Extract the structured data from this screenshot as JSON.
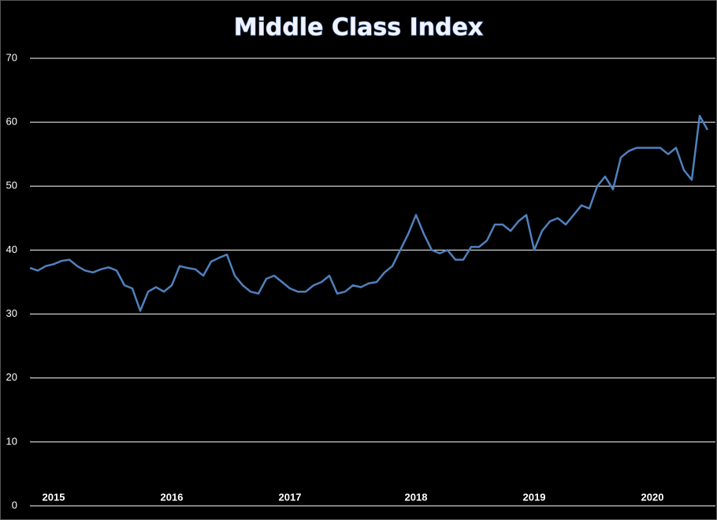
{
  "chart_data": {
    "type": "line",
    "title": "Middle Class Index",
    "categories": [
      null,
      null,
      null,
      "2015",
      null,
      null,
      null,
      null,
      null,
      null,
      null,
      null,
      null,
      null,
      null,
      null,
      null,
      null,
      "2016",
      null,
      null,
      null,
      null,
      null,
      null,
      null,
      null,
      null,
      null,
      null,
      null,
      null,
      null,
      "2017",
      null,
      null,
      null,
      null,
      null,
      null,
      null,
      null,
      null,
      null,
      null,
      null,
      null,
      null,
      null,
      "2018",
      null,
      null,
      null,
      null,
      null,
      null,
      null,
      null,
      null,
      null,
      null,
      null,
      null,
      null,
      "2019",
      null,
      null,
      null,
      null,
      null,
      null,
      null,
      null,
      null,
      null,
      null,
      null,
      null,
      null,
      "2020",
      null,
      null,
      null,
      null,
      null,
      null,
      null
    ],
    "series": [
      {
        "name": null,
        "color": "#4f81bd",
        "values": [
          37.2,
          36.8,
          37.5,
          37.8,
          38.3,
          38.5,
          37.5,
          36.8,
          36.5,
          37,
          37.3,
          36.8,
          34.5,
          34,
          30.5,
          33.5,
          34.2,
          33.5,
          34.5,
          37.5,
          37.2,
          37,
          36,
          38.2,
          38.8,
          39.3,
          36,
          34.5,
          33.5,
          33.2,
          35.5,
          36,
          35,
          34,
          33.5,
          33.5,
          34.5,
          35,
          36,
          33.2,
          33.5,
          34.5,
          34.2,
          34.8,
          35,
          36.5,
          37.5,
          40,
          42.5,
          45.5,
          42.5,
          40,
          39.5,
          40,
          38.5,
          38.5,
          40.5,
          40.5,
          41.5,
          44,
          44,
          43,
          44.5,
          45.5,
          40,
          43,
          44.5,
          45,
          44,
          45.5,
          47,
          46.5,
          50,
          51.5,
          49.5,
          54.5,
          55.5,
          56,
          56,
          56,
          56,
          55,
          56,
          52.5,
          51,
          61,
          58.8
        ]
      }
    ],
    "ylim": [
      0,
      70
    ],
    "yticks": [
      0,
      10,
      20,
      30,
      40,
      50,
      60,
      70
    ],
    "grid": true
  }
}
